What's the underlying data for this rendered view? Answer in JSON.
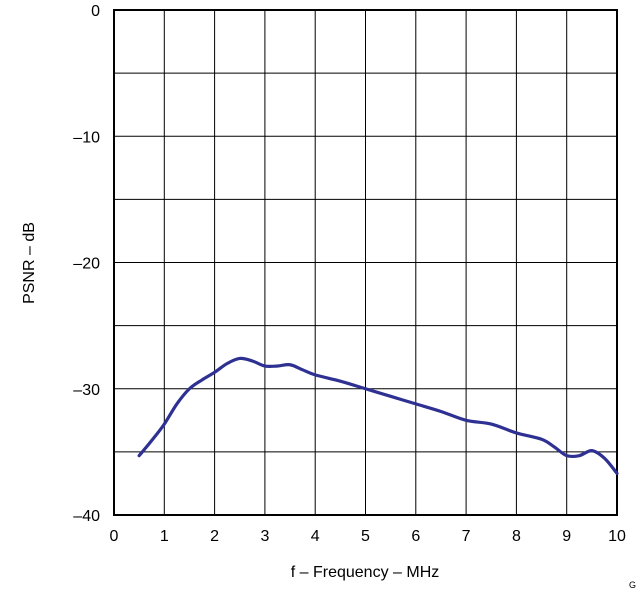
{
  "chart_data": {
    "type": "line",
    "title": "",
    "xlabel": "f – Frequency – MHz",
    "ylabel": "PSNR – dB",
    "xlim": [
      0,
      10
    ],
    "ylim": [
      -40,
      0
    ],
    "x_ticks": [
      0,
      1,
      2,
      3,
      4,
      5,
      6,
      7,
      8,
      9,
      10
    ],
    "x_tick_labels": [
      "0",
      "1",
      "2",
      "3",
      "4",
      "5",
      "6",
      "7",
      "8",
      "9",
      "10"
    ],
    "y_ticks": [
      0,
      -10,
      -20,
      -30,
      -40
    ],
    "y_tick_labels": [
      "0",
      "–10",
      "–20",
      "–30",
      "–40"
    ],
    "grid": true,
    "series": [
      {
        "color": "#2e3192",
        "x": [
          0.5,
          0.75,
          1.0,
          1.25,
          1.5,
          1.75,
          2.0,
          2.25,
          2.5,
          2.75,
          3.0,
          3.25,
          3.5,
          3.75,
          4.0,
          4.5,
          5.0,
          5.5,
          6.0,
          6.5,
          7.0,
          7.5,
          8.0,
          8.5,
          8.75,
          9.0,
          9.25,
          9.5,
          9.75,
          10.0
        ],
        "y": [
          -35.3,
          -34.1,
          -32.8,
          -31.2,
          -30.0,
          -29.3,
          -28.7,
          -28.0,
          -27.6,
          -27.8,
          -28.2,
          -28.2,
          -28.1,
          -28.5,
          -28.9,
          -29.4,
          -30.0,
          -30.6,
          -31.2,
          -31.8,
          -32.5,
          -32.8,
          -33.5,
          -34.0,
          -34.6,
          -35.3,
          -35.3,
          -34.9,
          -35.5,
          -36.7
        ]
      }
    ]
  },
  "corner_code": "G"
}
